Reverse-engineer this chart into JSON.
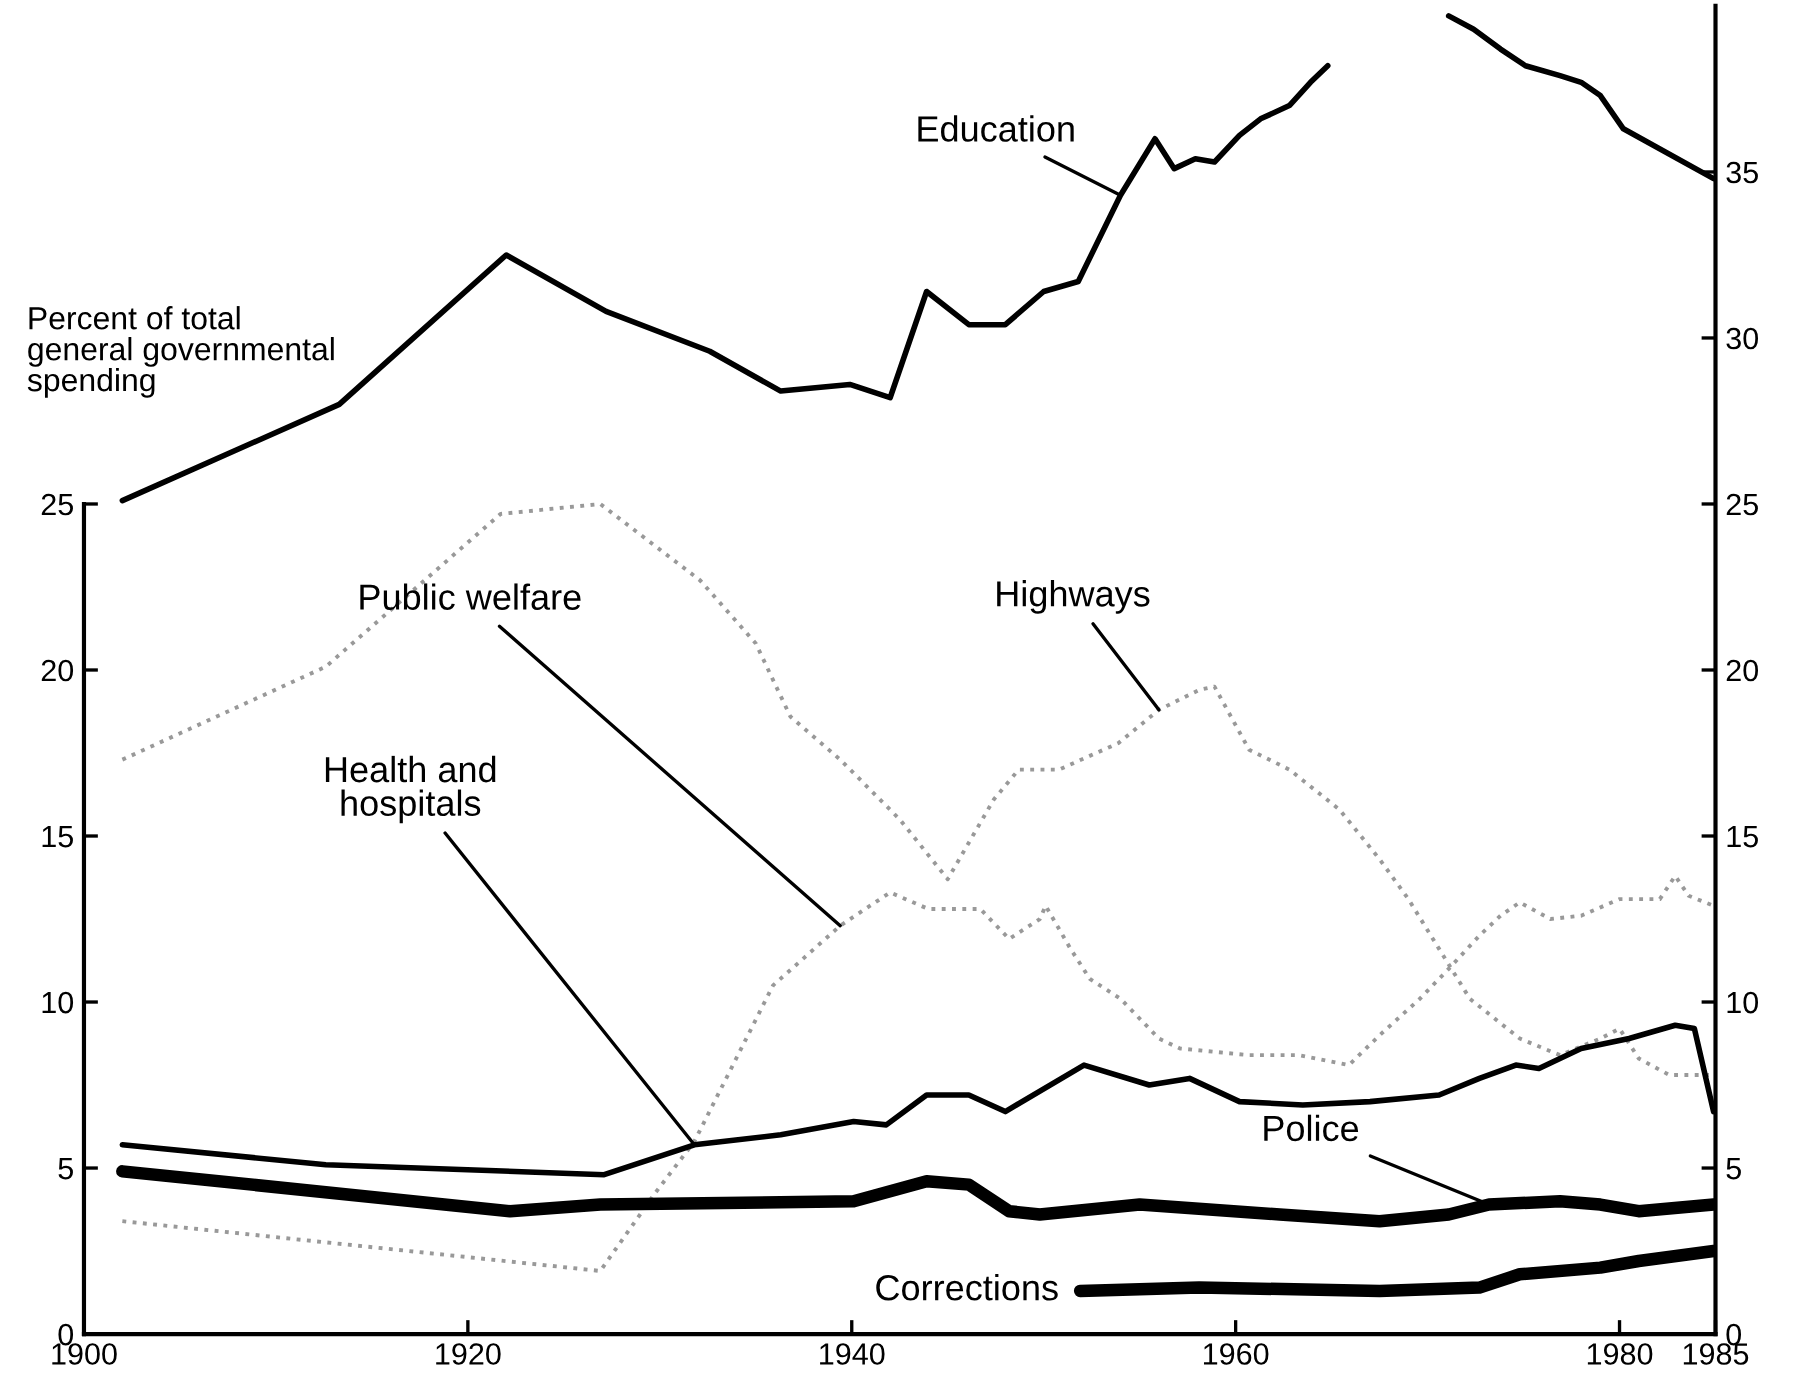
{
  "chart_data": {
    "type": "line",
    "ylabel": "Percent of total\ngeneral governmental\nspending",
    "xlim": [
      1900,
      1985
    ],
    "xticks": [
      1900,
      1920,
      1940,
      1960,
      1980,
      1985
    ],
    "ylim": [
      0,
      40
    ],
    "yticks": [
      0,
      5,
      10,
      15,
      20,
      25
    ],
    "y2lim": [
      0,
      40
    ],
    "y2ticks": [
      0,
      5,
      10,
      15,
      20,
      25,
      30,
      35
    ],
    "legend": false,
    "grid": false,
    "series": [
      {
        "name": "Education",
        "color": "#000000",
        "line_style": "solid",
        "x": [
          1902,
          1913.3,
          1922,
          1927.2,
          1932.6,
          1936.3,
          1939.9,
          1942,
          1943.9,
          1946.1,
          1948,
          1950,
          1951.8,
          1954,
          1955.8,
          1956.8,
          1957.9,
          1958.9,
          1960.2,
          1961.3,
          1962.8,
          1963.9,
          1964.8,
          1966,
          1969.6,
          1971.1,
          1972.4,
          1973.8,
          1975.1,
          1976.9,
          1978,
          1979,
          1980.2,
          1984.9
        ],
        "values": [
          25.1,
          28.0,
          32.5,
          30.8,
          29.6,
          28.4,
          28.6,
          28.2,
          31.4,
          30.4,
          30.4,
          31.4,
          31.7,
          34.3,
          36.0,
          35.1,
          35.4,
          35.3,
          36.1,
          36.6,
          37.0,
          37.7,
          38.2,
          null,
          null,
          39.7,
          39.3,
          38.7,
          38.2,
          37.9,
          37.7,
          37.3,
          36.3,
          34.8
        ]
      },
      {
        "name": "Highways",
        "color": "#999999",
        "line_style": "dotted",
        "x": [
          1902,
          1912.6,
          1921.7,
          1926.9,
          1932.1,
          1935,
          1936.8,
          1939.4,
          1942.5,
          1945,
          1947.4,
          1948.7,
          1950.8,
          1953.9,
          1956,
          1958.1,
          1958.9,
          1960.7,
          1962.8,
          1965.4,
          1967.5,
          1969,
          1970.6,
          1972.2,
          1974.8,
          1976.9,
          1979,
          1980,
          1981,
          1982.6,
          1984.9
        ],
        "values": [
          17.3,
          20.1,
          24.7,
          25.0,
          22.7,
          20.8,
          18.6,
          17.3,
          15.5,
          13.7,
          16.1,
          17.0,
          17.0,
          17.8,
          18.8,
          19.4,
          19.5,
          17.6,
          17.0,
          15.8,
          14.3,
          13.1,
          11.6,
          10.1,
          8.9,
          8.4,
          8.9,
          9.2,
          8.3,
          7.8,
          7.8
        ]
      },
      {
        "name": "Public welfare",
        "color": "#999999",
        "line_style": "dotted",
        "x": [
          1902,
          1926.9,
          1929.7,
          1931.8,
          1935.9,
          1939.4,
          1942,
          1944,
          1946.7,
          1948.2,
          1949.8,
          1950.1,
          1951.4,
          1952.4,
          1954,
          1956,
          1957.1,
          1960.7,
          1963.3,
          1965.9,
          1967.5,
          1969.6,
          1971.1,
          1972.7,
          1973.8,
          1974.8,
          1976.4,
          1978,
          1980,
          1982.1,
          1982.9,
          1983.6,
          1984.9
        ],
        "values": [
          3.4,
          1.9,
          4.2,
          5.8,
          10.5,
          12.3,
          13.3,
          12.8,
          12.8,
          11.9,
          12.5,
          12.9,
          11.6,
          10.7,
          10.1,
          8.9,
          8.6,
          8.4,
          8.4,
          8.1,
          9.0,
          10.1,
          11.0,
          12.0,
          12.6,
          13.0,
          12.5,
          12.6,
          13.1,
          13.1,
          13.8,
          13.2,
          12.9
        ]
      },
      {
        "name": "Health and\nhospitals",
        "color": "#000000",
        "line_style": "solid",
        "x": [
          1902,
          1912.6,
          1927.1,
          1931.8,
          1936.3,
          1940.1,
          1941.8,
          1943.9,
          1946.1,
          1948,
          1952.1,
          1955.5,
          1957.6,
          1960.2,
          1963.5,
          1967,
          1970.6,
          1972.7,
          1974.6,
          1975.8,
          1978,
          1980.5,
          1982.9,
          1983.9,
          1984.9
        ],
        "values": [
          5.7,
          5.1,
          4.8,
          5.7,
          6.0,
          6.4,
          6.3,
          7.2,
          7.2,
          6.7,
          8.1,
          7.5,
          7.7,
          7.0,
          6.9,
          7.0,
          7.2,
          7.7,
          8.1,
          8.0,
          8.6,
          8.9,
          9.3,
          9.2,
          6.7
        ]
      },
      {
        "name": "Police",
        "color": "#000000",
        "line_style": "solid",
        "x": [
          1902,
          1922.2,
          1926.9,
          1940.1,
          1943.9,
          1946.1,
          1948.2,
          1949.8,
          1955,
          1962.3,
          1967.5,
          1971.1,
          1973.2,
          1976.9,
          1979,
          1981,
          1984.9
        ],
        "values": [
          4.9,
          3.7,
          3.9,
          4.0,
          4.6,
          4.5,
          3.7,
          3.6,
          3.9,
          3.6,
          3.4,
          3.6,
          3.9,
          4.0,
          3.9,
          3.7,
          3.9
        ]
      },
      {
        "name": "Corrections",
        "color": "#000000",
        "line_style": "solid",
        "x": [
          1951.9,
          1958.1,
          1967.5,
          1972.7,
          1974.8,
          1979,
          1981,
          1984.9
        ],
        "values": [
          1.3,
          1.4,
          1.3,
          1.4,
          1.8,
          2.0,
          2.2,
          2.5
        ]
      }
    ]
  }
}
